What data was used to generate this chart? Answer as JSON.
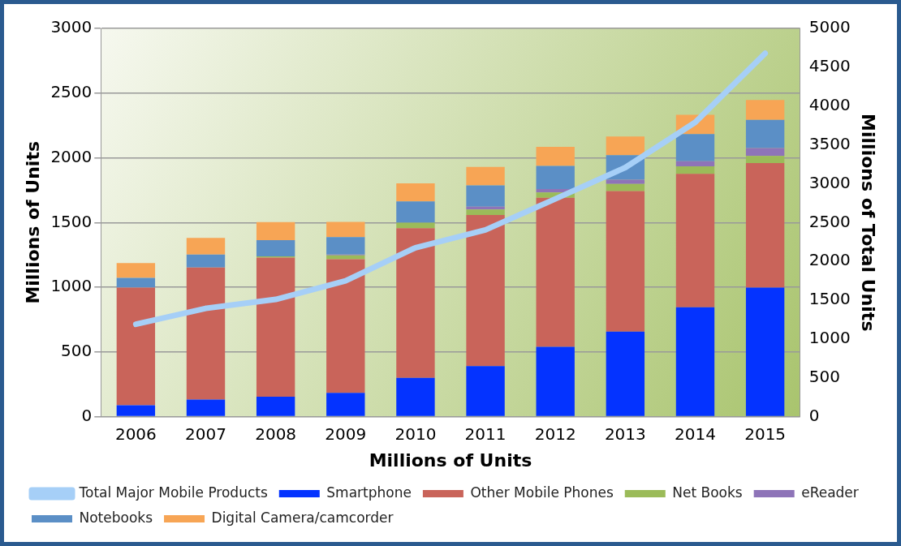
{
  "chart_data": {
    "type": "bar",
    "stacked": true,
    "xlabel": "Millions of Units",
    "ylabel": "Millions of Units",
    "y2label": "Millions of Total Units",
    "categories": [
      "2006",
      "2007",
      "2008",
      "2009",
      "2010",
      "2011",
      "2012",
      "2013",
      "2014",
      "2015"
    ],
    "series": [
      {
        "name": "Smartphone",
        "color": "#0433ff",
        "values": [
          88,
          132,
          154,
          184,
          300,
          391,
          539,
          658,
          845,
          997
        ]
      },
      {
        "name": "Other Mobile Phones",
        "color": "#c9645a",
        "values": [
          909,
          1020,
          1075,
          1033,
          1156,
          1168,
          1152,
          1085,
          1032,
          963
        ]
      },
      {
        "name": "Net Books",
        "color": "#9bbb59",
        "values": [
          0,
          0,
          10,
          30,
          42,
          41,
          41,
          55,
          58,
          55
        ]
      },
      {
        "name": "eReader",
        "color": "#8e74b8",
        "values": [
          0,
          0,
          0,
          5,
          0,
          22,
          27,
          33,
          39,
          61
        ]
      },
      {
        "name": "Notebooks",
        "color": "#5b8fc6",
        "values": [
          75,
          100,
          125,
          135,
          165,
          165,
          179,
          190,
          209,
          218
        ]
      },
      {
        "name": "Digital Camera/camcorder",
        "color": "#f7a555",
        "values": [
          115,
          130,
          140,
          118,
          140,
          143,
          147,
          143,
          149,
          153
        ]
      },
      {
        "name": "Total Major Mobile Products",
        "type": "line",
        "axis": "y2",
        "color": "#a6cff7",
        "values": [
          1190,
          1395,
          1510,
          1749,
          2176,
          2405,
          2805,
          3208,
          3791,
          4678
        ]
      }
    ],
    "ylim": [
      0,
      3000
    ],
    "yticks": [
      0,
      500,
      1000,
      1500,
      2000,
      2500,
      3000
    ],
    "y2lim": [
      0,
      5000
    ],
    "y2ticks": [
      0,
      500,
      1000,
      1500,
      2000,
      2500,
      3000,
      3500,
      4000,
      4500,
      5000
    ],
    "grid": "y",
    "legend": "bottom",
    "marker": "none"
  }
}
